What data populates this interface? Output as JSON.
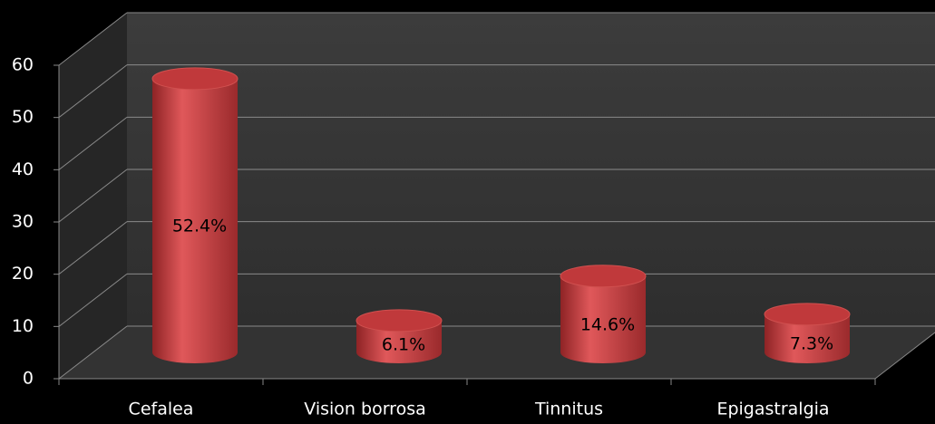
{
  "chart_data": {
    "type": "bar",
    "style": "3d-cylinder",
    "categories": [
      "Cefalea",
      "Vision borrosa",
      "Tinnitus",
      "Epigastralgia"
    ],
    "values": [
      52.4,
      6.1,
      14.6,
      7.3
    ],
    "value_labels": [
      "52.4%",
      "6.1%",
      "14.6%",
      "7.3%"
    ],
    "color": "#c0393b",
    "ylim": [
      0,
      60
    ],
    "yticks": [
      0,
      10,
      20,
      30,
      40,
      50,
      60
    ],
    "grid": true
  }
}
